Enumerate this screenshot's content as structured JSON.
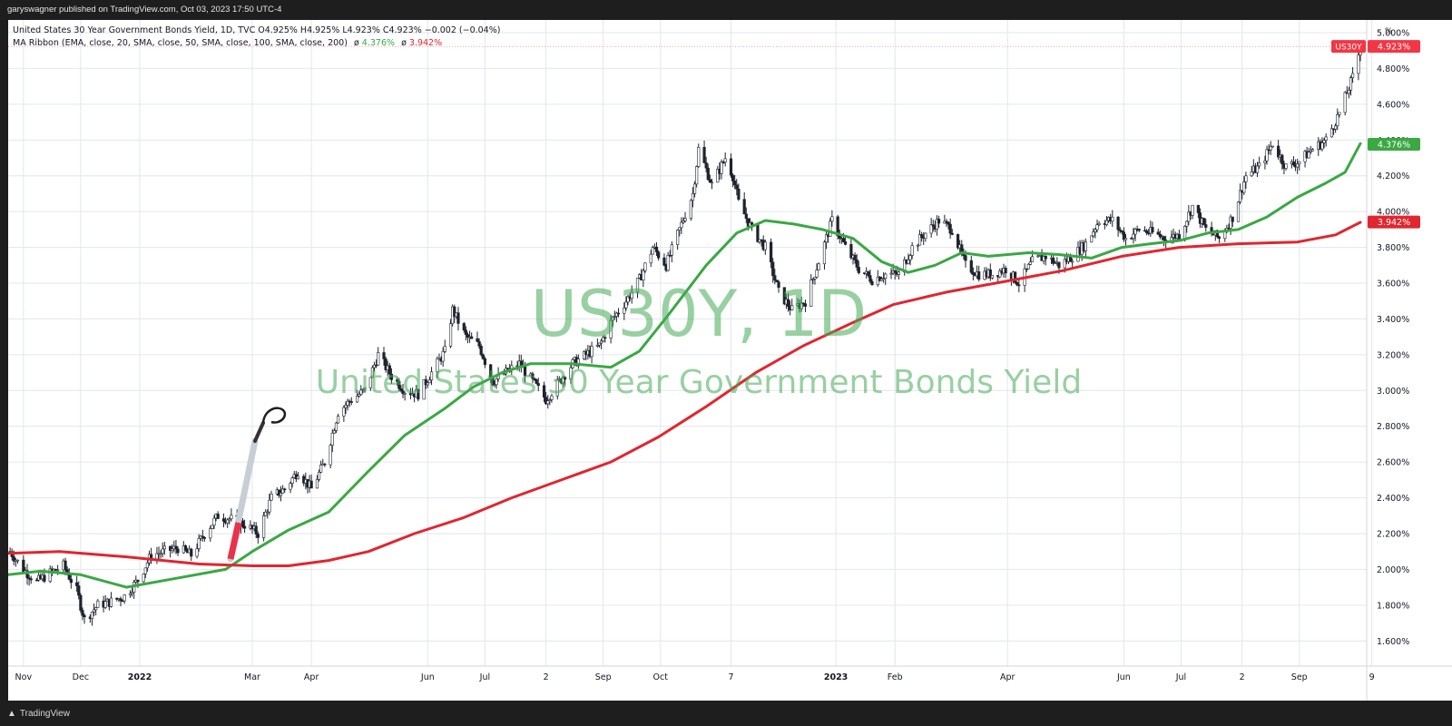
{
  "header": {
    "publisher": "garyswagner published on TradingView.com, Oct 03, 2023 17:50 UTC-4"
  },
  "legend": {
    "line1": "United States 30 Year Government Bonds Yield, 1D, TVC  O4.925%  H4.925%  L4.923%  C4.923%  −0.002 (−0.04%)",
    "line2_label": "MA Ribbon (EMA, close, 20, SMA, close, 50, SMA, close, 100, SMA, close, 200)",
    "line2_sep": "ø",
    "ma_fast_value": "4.376%",
    "ma_slow_value": "3.942%"
  },
  "watermark": {
    "symbol": "US30Y, 1D",
    "name": "United States 30 Year Government Bonds Yield"
  },
  "axis_unit": "%",
  "footer": {
    "brand": "TradingView"
  },
  "colors": {
    "candle": "#1e222d",
    "ma_fast": "#3aa843",
    "ma_slow": "#e0262f",
    "grid": "#e3e6ec",
    "last_price": "#f23645"
  },
  "chart_data": {
    "type": "candlestick",
    "symbol": "US30Y",
    "x_range": [
      "2021-10-24",
      "2023-10-03"
    ],
    "ylim": [
      1.5,
      5.0
    ],
    "y_ticks": [
      1.6,
      1.8,
      2.0,
      2.2,
      2.4,
      2.6,
      2.8,
      3.0,
      3.2,
      3.4,
      3.6,
      3.8,
      4.0,
      4.2,
      4.4,
      4.6,
      4.8,
      5.0
    ],
    "y_tick_labels": [
      "1.600%",
      "1.800%",
      "2.000%",
      "2.200%",
      "2.400%",
      "2.600%",
      "2.800%",
      "3.000%",
      "3.200%",
      "3.400%",
      "3.600%",
      "3.800%",
      "4.000%",
      "4.200%",
      "4.400%",
      "4.600%",
      "4.800%",
      "5.000%"
    ],
    "x_ticks": [
      {
        "label": "Nov",
        "date": "2021-11-01",
        "bold": false
      },
      {
        "label": "Dec",
        "date": "2021-12-01",
        "bold": false
      },
      {
        "label": "2022",
        "date": "2022-01-01",
        "bold": true
      },
      {
        "label": "Mar",
        "date": "2022-03-01",
        "bold": false
      },
      {
        "label": "Apr",
        "date": "2022-04-01",
        "bold": false
      },
      {
        "label": "Jun",
        "date": "2022-06-01",
        "bold": false
      },
      {
        "label": "Jul",
        "date": "2022-07-01",
        "bold": false
      },
      {
        "label": "2",
        "date": "2022-08-02",
        "bold": false
      },
      {
        "label": "Sep",
        "date": "2022-09-01",
        "bold": false
      },
      {
        "label": "Oct",
        "date": "2022-10-01",
        "bold": false
      },
      {
        "label": "7",
        "date": "2022-11-07",
        "bold": false
      },
      {
        "label": "2023",
        "date": "2023-01-01",
        "bold": true
      },
      {
        "label": "Feb",
        "date": "2023-02-01",
        "bold": false
      },
      {
        "label": "Apr",
        "date": "2023-04-01",
        "bold": false
      },
      {
        "label": "Jun",
        "date": "2023-06-01",
        "bold": false
      },
      {
        "label": "Jul",
        "date": "2023-07-01",
        "bold": false
      },
      {
        "label": "2",
        "date": "2023-08-02",
        "bold": false
      },
      {
        "label": "Sep",
        "date": "2023-09-01",
        "bold": false
      },
      {
        "label": "9",
        "date": "2023-10-09",
        "bold": false
      }
    ],
    "series": [
      {
        "name": "US30Y",
        "kind": "close",
        "points": [
          [
            "2021-10-25",
            2.1
          ],
          [
            "2021-11-01",
            2.0
          ],
          [
            "2021-11-08",
            1.93
          ],
          [
            "2021-11-15",
            1.98
          ],
          [
            "2021-11-22",
            2.02
          ],
          [
            "2021-11-29",
            1.88
          ],
          [
            "2021-12-03",
            1.72
          ],
          [
            "2021-12-10",
            1.8
          ],
          [
            "2021-12-17",
            1.82
          ],
          [
            "2021-12-24",
            1.85
          ],
          [
            "2021-12-31",
            1.94
          ],
          [
            "2022-01-07",
            2.08
          ],
          [
            "2022-01-14",
            2.1
          ],
          [
            "2022-01-21",
            2.12
          ],
          [
            "2022-01-28",
            2.08
          ],
          [
            "2022-02-04",
            2.2
          ],
          [
            "2022-02-11",
            2.3
          ],
          [
            "2022-02-18",
            2.28
          ],
          [
            "2022-02-25",
            2.25
          ],
          [
            "2022-03-04",
            2.2
          ],
          [
            "2022-03-11",
            2.4
          ],
          [
            "2022-03-18",
            2.45
          ],
          [
            "2022-03-25",
            2.55
          ],
          [
            "2022-04-01",
            2.45
          ],
          [
            "2022-04-08",
            2.6
          ],
          [
            "2022-04-15",
            2.88
          ],
          [
            "2022-04-22",
            2.95
          ],
          [
            "2022-04-29",
            3.0
          ],
          [
            "2022-05-06",
            3.2
          ],
          [
            "2022-05-13",
            3.08
          ],
          [
            "2022-05-20",
            3.0
          ],
          [
            "2022-05-27",
            2.98
          ],
          [
            "2022-06-03",
            3.1
          ],
          [
            "2022-06-10",
            3.22
          ],
          [
            "2022-06-14",
            3.45
          ],
          [
            "2022-06-21",
            3.3
          ],
          [
            "2022-06-28",
            3.25
          ],
          [
            "2022-07-05",
            3.05
          ],
          [
            "2022-07-12",
            3.1
          ],
          [
            "2022-07-19",
            3.15
          ],
          [
            "2022-07-26",
            3.05
          ],
          [
            "2022-08-02",
            2.95
          ],
          [
            "2022-08-09",
            3.05
          ],
          [
            "2022-08-16",
            3.15
          ],
          [
            "2022-08-23",
            3.2
          ],
          [
            "2022-08-30",
            3.25
          ],
          [
            "2022-09-06",
            3.4
          ],
          [
            "2022-09-13",
            3.5
          ],
          [
            "2022-09-20",
            3.62
          ],
          [
            "2022-09-27",
            3.8
          ],
          [
            "2022-10-04",
            3.7
          ],
          [
            "2022-10-11",
            3.9
          ],
          [
            "2022-10-18",
            4.1
          ],
          [
            "2022-10-21",
            4.35
          ],
          [
            "2022-10-28",
            4.15
          ],
          [
            "2022-11-04",
            4.3
          ],
          [
            "2022-11-08",
            4.2
          ],
          [
            "2022-11-11",
            4.05
          ],
          [
            "2022-11-18",
            3.9
          ],
          [
            "2022-11-25",
            3.8
          ],
          [
            "2022-12-02",
            3.55
          ],
          [
            "2022-12-09",
            3.45
          ],
          [
            "2022-12-16",
            3.5
          ],
          [
            "2022-12-23",
            3.72
          ],
          [
            "2022-12-30",
            3.95
          ],
          [
            "2023-01-06",
            3.8
          ],
          [
            "2023-01-13",
            3.68
          ],
          [
            "2023-01-20",
            3.62
          ],
          [
            "2023-01-27",
            3.65
          ],
          [
            "2023-02-03",
            3.65
          ],
          [
            "2023-02-10",
            3.8
          ],
          [
            "2023-02-17",
            3.88
          ],
          [
            "2023-02-24",
            3.95
          ],
          [
            "2023-03-03",
            3.9
          ],
          [
            "2023-03-10",
            3.7
          ],
          [
            "2023-03-17",
            3.65
          ],
          [
            "2023-03-24",
            3.65
          ],
          [
            "2023-03-31",
            3.68
          ],
          [
            "2023-04-07",
            3.6
          ],
          [
            "2023-04-14",
            3.72
          ],
          [
            "2023-04-21",
            3.75
          ],
          [
            "2023-04-28",
            3.7
          ],
          [
            "2023-05-05",
            3.75
          ],
          [
            "2023-05-12",
            3.82
          ],
          [
            "2023-05-19",
            3.95
          ],
          [
            "2023-05-26",
            3.95
          ],
          [
            "2023-06-02",
            3.85
          ],
          [
            "2023-06-09",
            3.9
          ],
          [
            "2023-06-16",
            3.88
          ],
          [
            "2023-06-23",
            3.85
          ],
          [
            "2023-06-30",
            3.87
          ],
          [
            "2023-07-07",
            4.03
          ],
          [
            "2023-07-14",
            3.9
          ],
          [
            "2023-07-21",
            3.85
          ],
          [
            "2023-07-28",
            3.97
          ],
          [
            "2023-08-04",
            4.2
          ],
          [
            "2023-08-11",
            4.25
          ],
          [
            "2023-08-18",
            4.38
          ],
          [
            "2023-08-25",
            4.25
          ],
          [
            "2023-09-01",
            4.28
          ],
          [
            "2023-09-08",
            4.35
          ],
          [
            "2023-09-15",
            4.4
          ],
          [
            "2023-09-22",
            4.55
          ],
          [
            "2023-09-29",
            4.75
          ],
          [
            "2023-10-03",
            4.92
          ]
        ]
      },
      {
        "name": "MA fast",
        "kind": "line",
        "points": [
          [
            "2021-10-24",
            1.97
          ],
          [
            "2021-11-10",
            1.99
          ],
          [
            "2021-12-01",
            1.97
          ],
          [
            "2021-12-25",
            1.9
          ],
          [
            "2022-01-20",
            1.95
          ],
          [
            "2022-02-15",
            2.0
          ],
          [
            "2022-03-01",
            2.1
          ],
          [
            "2022-03-20",
            2.22
          ],
          [
            "2022-04-10",
            2.32
          ],
          [
            "2022-05-01",
            2.55
          ],
          [
            "2022-05-20",
            2.75
          ],
          [
            "2022-06-10",
            2.9
          ],
          [
            "2022-06-25",
            3.02
          ],
          [
            "2022-07-10",
            3.1
          ],
          [
            "2022-07-25",
            3.15
          ],
          [
            "2022-08-15",
            3.15
          ],
          [
            "2022-09-05",
            3.13
          ],
          [
            "2022-09-20",
            3.22
          ],
          [
            "2022-10-05",
            3.42
          ],
          [
            "2022-10-25",
            3.7
          ],
          [
            "2022-11-10",
            3.88
          ],
          [
            "2022-11-25",
            3.95
          ],
          [
            "2022-12-10",
            3.93
          ],
          [
            "2022-12-25",
            3.9
          ],
          [
            "2023-01-10",
            3.85
          ],
          [
            "2023-01-25",
            3.72
          ],
          [
            "2023-02-08",
            3.66
          ],
          [
            "2023-02-22",
            3.7
          ],
          [
            "2023-03-08",
            3.77
          ],
          [
            "2023-03-22",
            3.75
          ],
          [
            "2023-04-12",
            3.77
          ],
          [
            "2023-04-28",
            3.76
          ],
          [
            "2023-05-15",
            3.74
          ],
          [
            "2023-05-31",
            3.8
          ],
          [
            "2023-06-15",
            3.82
          ],
          [
            "2023-07-01",
            3.84
          ],
          [
            "2023-07-15",
            3.88
          ],
          [
            "2023-07-31",
            3.9
          ],
          [
            "2023-08-15",
            3.97
          ],
          [
            "2023-08-31",
            4.08
          ],
          [
            "2023-09-15",
            4.16
          ],
          [
            "2023-09-25",
            4.22
          ],
          [
            "2023-10-03",
            4.38
          ]
        ]
      },
      {
        "name": "MA slow",
        "kind": "line",
        "points": [
          [
            "2021-10-24",
            2.09
          ],
          [
            "2021-11-20",
            2.1
          ],
          [
            "2021-12-25",
            2.07
          ],
          [
            "2022-02-01",
            2.03
          ],
          [
            "2022-03-01",
            2.02
          ],
          [
            "2022-03-20",
            2.02
          ],
          [
            "2022-04-10",
            2.05
          ],
          [
            "2022-05-01",
            2.1
          ],
          [
            "2022-05-25",
            2.2
          ],
          [
            "2022-06-20",
            2.29
          ],
          [
            "2022-07-15",
            2.4
          ],
          [
            "2022-08-10",
            2.5
          ],
          [
            "2022-09-05",
            2.6
          ],
          [
            "2022-09-30",
            2.74
          ],
          [
            "2022-10-25",
            2.91
          ],
          [
            "2022-11-20",
            3.1
          ],
          [
            "2022-12-15",
            3.25
          ],
          [
            "2023-01-10",
            3.38
          ],
          [
            "2023-01-31",
            3.48
          ],
          [
            "2023-02-28",
            3.55
          ],
          [
            "2023-03-31",
            3.61
          ],
          [
            "2023-04-30",
            3.67
          ],
          [
            "2023-05-31",
            3.75
          ],
          [
            "2023-06-30",
            3.8
          ],
          [
            "2023-07-31",
            3.82
          ],
          [
            "2023-08-31",
            3.83
          ],
          [
            "2023-09-20",
            3.87
          ],
          [
            "2023-10-03",
            3.94
          ]
        ]
      }
    ],
    "price_labels": [
      {
        "symbol": "US30Y",
        "value": 4.923,
        "text": "4.923%"
      },
      {
        "value": 4.376,
        "text": "4.376%"
      },
      {
        "value": 3.942,
        "text": "3.942%"
      }
    ]
  }
}
